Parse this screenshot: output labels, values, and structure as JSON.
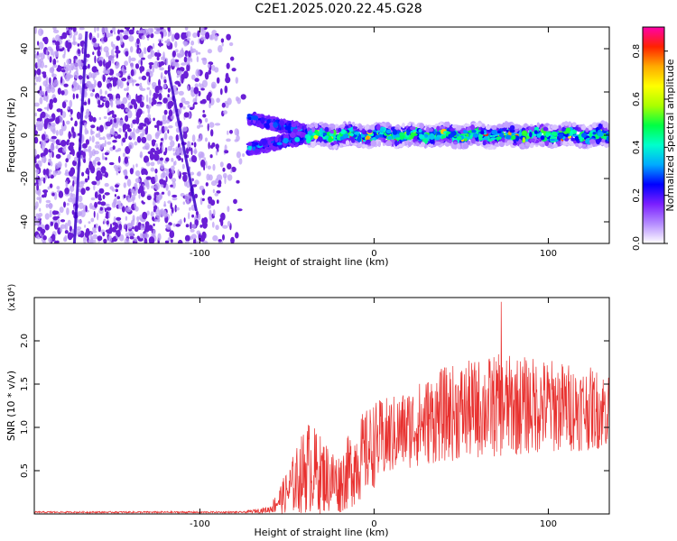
{
  "figure": {
    "title": "C2E1.2025.020.22.45.G28"
  },
  "chart_data": [
    {
      "type": "heatmap",
      "title": "C2E1.2025.020.22.45.G28",
      "xlabel": "Height of straight line (km)",
      "ylabel": "Frequency (Hz)",
      "xlim": [
        -195,
        135
      ],
      "ylim": [
        -50,
        50
      ],
      "x_ticks": [
        -100,
        0,
        100
      ],
      "y_ticks": [
        -40,
        -20,
        0,
        20,
        40
      ],
      "grid": false,
      "colorbar": {
        "label": "Normalized spectral amplitude",
        "range": [
          0.0,
          0.9
        ],
        "ticks": [
          0.0,
          0.2,
          0.4,
          0.6,
          0.8
        ],
        "colormap": [
          "#ffffff",
          "#b58cff",
          "#7b1fff",
          "#0000ff",
          "#00aaff",
          "#00ffcc",
          "#00ff44",
          "#aaff00",
          "#ffff00",
          "#ffaa00",
          "#ff2200",
          "#ff00aa"
        ]
      },
      "noise_region": {
        "x_from": -195,
        "x_to": -72,
        "color": "#6a1fd6"
      },
      "signal": {
        "doppler_split": {
          "x_from": -72,
          "x_to": -38,
          "upper_freq": 8,
          "lower_freq": -6
        },
        "centre_track": {
          "x_from": -38,
          "x_to": 135,
          "freq": 0,
          "half_width_hz": 4
        },
        "peak_amplitude": 0.88
      }
    },
    {
      "type": "line",
      "xlabel": "Height of straight line (km)",
      "ylabel": "SNR (10 * v/v)",
      "y_multiplier": "(x10⁴)",
      "xlim": [
        -195,
        135
      ],
      "ylim": [
        0,
        2.5
      ],
      "x_ticks": [
        -100,
        0,
        100
      ],
      "y_ticks": [
        0.5,
        1.0,
        1.5,
        2.0
      ],
      "grid": false,
      "series_color": "#e8312f",
      "envelope": [
        {
          "x": -195,
          "mean": 0.02,
          "amp": 0.01
        },
        {
          "x": -75,
          "mean": 0.02,
          "amp": 0.01
        },
        {
          "x": -60,
          "mean": 0.05,
          "amp": 0.04
        },
        {
          "x": -50,
          "mean": 0.25,
          "amp": 0.25
        },
        {
          "x": -38,
          "mean": 0.55,
          "amp": 0.55
        },
        {
          "x": -30,
          "mean": 0.45,
          "amp": 0.45
        },
        {
          "x": -20,
          "mean": 0.35,
          "amp": 0.35
        },
        {
          "x": -10,
          "mean": 0.6,
          "amp": 0.5
        },
        {
          "x": 0,
          "mean": 0.8,
          "amp": 0.5
        },
        {
          "x": 15,
          "mean": 0.95,
          "amp": 0.45
        },
        {
          "x": 40,
          "mean": 1.15,
          "amp": 0.55
        },
        {
          "x": 70,
          "mean": 1.25,
          "amp": 0.6
        },
        {
          "x": 100,
          "mean": 1.25,
          "amp": 0.55
        },
        {
          "x": 135,
          "mean": 1.2,
          "amp": 0.45
        }
      ],
      "peak_value": 2.45,
      "peak_x": 73
    }
  ]
}
